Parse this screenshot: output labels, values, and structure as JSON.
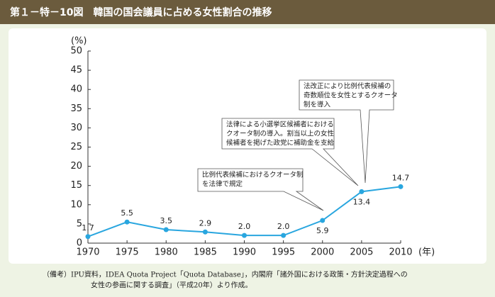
{
  "chart_data": {
    "type": "line",
    "title": "第１－特－10図　韓国の国会議員に占める女性割合の推移",
    "y_label": "(%)",
    "x_label": "(年)",
    "x": [
      1970,
      1975,
      1980,
      1985,
      1990,
      1995,
      2000,
      2005,
      2010
    ],
    "values": [
      1.7,
      5.5,
      3.5,
      2.9,
      2.0,
      2.0,
      5.9,
      13.4,
      14.7
    ],
    "value_labels": [
      "1.7",
      "5.5",
      "3.5",
      "2.9",
      "2.0",
      "2.0",
      "5.9",
      "13.4",
      "14.7"
    ],
    "color": "#29a6df",
    "xlim": [
      1970,
      2010
    ],
    "xticks": [
      1970,
      1975,
      1980,
      1985,
      1990,
      1995,
      2000,
      2005,
      2010
    ],
    "ylim": [
      0,
      50
    ],
    "yticks": [
      0,
      5,
      10,
      15,
      20,
      25,
      30,
      35,
      40,
      45,
      50
    ],
    "grid": false,
    "annotations": [
      [
        "比例代表候補におけるクオータ制",
        "を法律で規定"
      ],
      [
        "法律による小選挙区候補者における",
        "クオータ制の導入。割当以上の女性",
        "候補者を掲げた政党に補助金を支給"
      ],
      [
        "法改正により比例代表候補の",
        "奇数順位を女性とするクオータ",
        "制を導入"
      ]
    ],
    "note": [
      "（備考）IPU資料，IDEA Quota Project「Quota Database」，内閣府「諸外国における政策・方針決定過程への",
      "女性の参画に関する調査」（平成20年）より作成。"
    ]
  }
}
